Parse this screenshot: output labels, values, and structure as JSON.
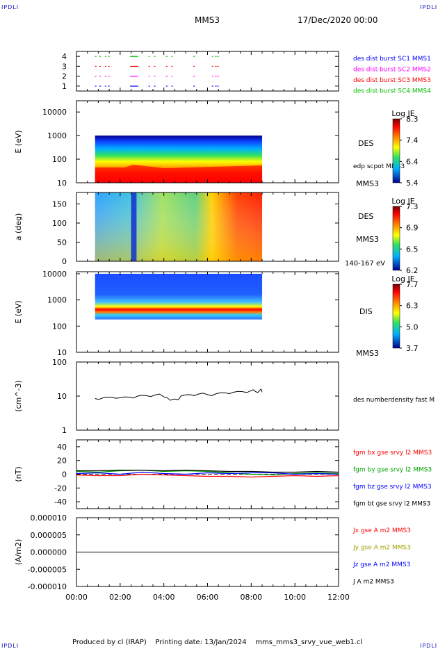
{
  "corner_labels": {
    "top_left": "IPDLI",
    "top_right": "IPDLI",
    "bottom_left": "IPDLI",
    "bottom_right": "IPDLI"
  },
  "header": {
    "spacecraft": "MMS3",
    "date": "17/Dec/2020 00:00"
  },
  "footer": {
    "produced": "Produced by cl (IRAP)",
    "printing": "Printing date: 13/Jan/2024",
    "file": "mms_mms3_srvy_vue_web1.cl"
  },
  "x_axis": {
    "ticks": [
      "00:00",
      "02:00",
      "04:00",
      "06:00",
      "08:00",
      "10:00",
      "12:00"
    ],
    "range_hours": [
      0,
      12
    ]
  },
  "colors": {
    "mms1": "#0000ff",
    "mms2": "#ff00ff",
    "mms3": "#ff0000",
    "mms4": "#00c000",
    "bx": "#ff0000",
    "by": "#00a000",
    "bz": "#0000ff",
    "bt": "#000000"
  },
  "chart_data": [
    {
      "type": "scatter",
      "ylim": [
        0.5,
        4.5
      ],
      "y_ticks": [
        "1",
        "2",
        "3",
        "4"
      ],
      "legend": [
        {
          "text": "des dist burst SC1 MMS1",
          "color": "#0000ff"
        },
        {
          "text": "des dist burst SC2 MMS2",
          "color": "#ff00ff"
        },
        {
          "text": "des dist burst SC3 MMS3",
          "color": "#ff0000"
        },
        {
          "text": "des dist burst SC4 MMS4",
          "color": "#00c000"
        }
      ],
      "series": [
        {
          "y": 1,
          "x": [
            0.85,
            1.05,
            1.3,
            1.45,
            2.45,
            2.6,
            3.3,
            3.55,
            4.1,
            4.35,
            5.35,
            6.2,
            6.35,
            6.45
          ]
        },
        {
          "y": 2,
          "x": [
            0.85,
            1.05,
            1.3,
            1.45,
            2.45,
            2.6,
            3.3,
            3.55,
            4.1,
            4.35,
            5.35,
            6.2,
            6.35,
            6.45
          ]
        },
        {
          "y": 3,
          "x": [
            0.85,
            1.05,
            1.3,
            1.45,
            2.45,
            2.6,
            3.3,
            3.55,
            4.1,
            4.35,
            5.35,
            6.2,
            6.35,
            6.45
          ]
        },
        {
          "y": 4,
          "x": [
            0.85,
            1.05,
            1.3,
            1.45,
            2.45,
            2.6,
            3.3,
            3.55,
            4.1,
            4.35,
            5.35,
            6.2,
            6.35,
            6.45
          ]
        }
      ]
    },
    {
      "type": "heatmap",
      "ylabel": "E (eV)",
      "y_ticks": [
        "10",
        "100",
        "1000",
        "10000"
      ],
      "right_label": "DES",
      "right_sub": "edp scpot MMS3",
      "corner_label": "MMS3",
      "colorbar": {
        "title": "Log JE",
        "ticks": [
          "8.3",
          "7.4",
          "6.4",
          "5.4"
        ]
      },
      "x_range": [
        0.85,
        8.5
      ]
    },
    {
      "type": "heatmap",
      "ylabel": "a (deg)",
      "y_ticks": [
        "0",
        "50",
        "100",
        "150"
      ],
      "right_label": "DES",
      "right_sub": "MMS3",
      "corner_label": "140-167 eV",
      "colorbar": {
        "title": "Log JE",
        "ticks": [
          "7.3",
          "6.9",
          "6.5",
          "6.2"
        ]
      },
      "x_range": [
        0.85,
        8.5
      ]
    },
    {
      "type": "heatmap",
      "ylabel": "E (eV)",
      "y_ticks": [
        "10",
        "100",
        "1000",
        "10000"
      ],
      "right_label": "DIS",
      "corner_label": "MMS3",
      "colorbar": {
        "title": "Log JE",
        "ticks": [
          "7.7",
          "6.3",
          "5.0",
          "3.7"
        ]
      },
      "x_range": [
        0.85,
        8.5
      ]
    },
    {
      "type": "line",
      "ylabel": "(cm^-3)",
      "y_ticks": [
        "1",
        "10",
        "100"
      ],
      "legend": [
        {
          "text": "des numberdensity fast M",
          "color": "#000000"
        }
      ],
      "x": [
        0.85,
        1.2,
        1.6,
        2.0,
        2.4,
        2.8,
        3.2,
        3.6,
        4.0,
        4.3,
        4.5,
        4.8,
        5.2,
        5.6,
        6.0,
        6.4,
        6.8,
        7.2,
        7.6,
        8.0,
        8.2,
        8.4,
        8.5
      ],
      "y": [
        8.5,
        8.8,
        9.2,
        8.9,
        9.3,
        10.0,
        10.3,
        10.8,
        9.5,
        7.5,
        8.2,
        10.2,
        11.0,
        11.5,
        11.0,
        11.8,
        12.5,
        13.0,
        13.5,
        14.5,
        13.5,
        15.0,
        13.0
      ]
    },
    {
      "type": "line",
      "ylabel": "(nT)",
      "ylim": [
        -50,
        50
      ],
      "y_ticks": [
        "-40",
        "-20",
        "0",
        "20",
        "40"
      ],
      "legend": [
        {
          "text": "fgm bx gse srvy l2 MMS3",
          "color": "#ff0000"
        },
        {
          "text": "fgm by gse srvy l2 MMS3",
          "color": "#00a000"
        },
        {
          "text": "fgm bz gse srvy l2 MMS3",
          "color": "#0000ff"
        },
        {
          "text": "fgm bt gse srvy l2 MMS3",
          "color": "#000000"
        }
      ],
      "x": [
        0,
        1,
        2,
        3,
        4,
        5,
        6,
        7,
        8,
        9,
        10,
        11,
        12
      ],
      "series": [
        {
          "name": "bx",
          "values": [
            -1,
            -2,
            -2,
            0,
            -1,
            -2,
            -3,
            -3,
            -4,
            -3,
            -2,
            -3,
            -2
          ]
        },
        {
          "name": "by",
          "values": [
            4,
            3,
            5,
            6,
            4,
            5,
            4,
            2,
            0,
            -1,
            1,
            2,
            1
          ]
        },
        {
          "name": "bz",
          "values": [
            1,
            2,
            0,
            3,
            1,
            0,
            2,
            1,
            2,
            2,
            0,
            1,
            0
          ]
        },
        {
          "name": "bt",
          "values": [
            5,
            5,
            6,
            6,
            5,
            6,
            5,
            4,
            4,
            3,
            3,
            4,
            3
          ]
        }
      ]
    },
    {
      "type": "line",
      "ylabel": "(A/m2)",
      "ylim": [
        -1e-05,
        1e-05
      ],
      "y_ticks": [
        "0.000010",
        "0.000005",
        "0.000000",
        "-0.000005",
        "-0.000010"
      ],
      "legend": [
        {
          "text": "Jx gse A m2 MMS3",
          "color": "#ff0000"
        },
        {
          "text": "Jy gse A m2 MMS3",
          "color": "#a0a000"
        },
        {
          "text": "Jz gse A m2 MMS3",
          "color": "#0000ff"
        },
        {
          "text": "J A m2 MMS3",
          "color": "#000000"
        }
      ],
      "x": [
        0,
        12
      ],
      "y": [
        0,
        0
      ]
    }
  ]
}
